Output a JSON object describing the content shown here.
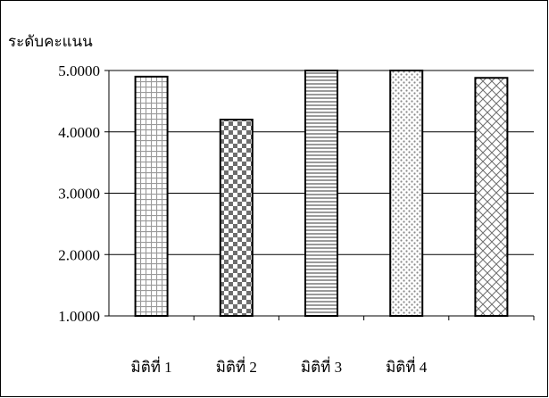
{
  "chart_data": {
    "type": "bar",
    "title": "",
    "xlabel": "",
    "ylabel": "ระดับคะแนน",
    "categories": [
      "มิติที่ 1",
      "มิติที่ 2",
      "มิติที่ 3",
      "มิติที่ 4",
      ""
    ],
    "values": [
      4.9,
      4.2,
      5.0,
      5.0,
      4.88
    ],
    "patterns": [
      "grid",
      "checker",
      "horizontal-stripes",
      "dots",
      "diagonal-cross"
    ],
    "ylim": [
      1.0,
      5.0
    ],
    "yticks": [
      1.0,
      2.0,
      3.0,
      4.0,
      5.0
    ],
    "ytick_labels": [
      "1.0000",
      "2.0000",
      "3.0000",
      "4.0000",
      "5.0000"
    ],
    "grid": true,
    "legend": "none"
  }
}
